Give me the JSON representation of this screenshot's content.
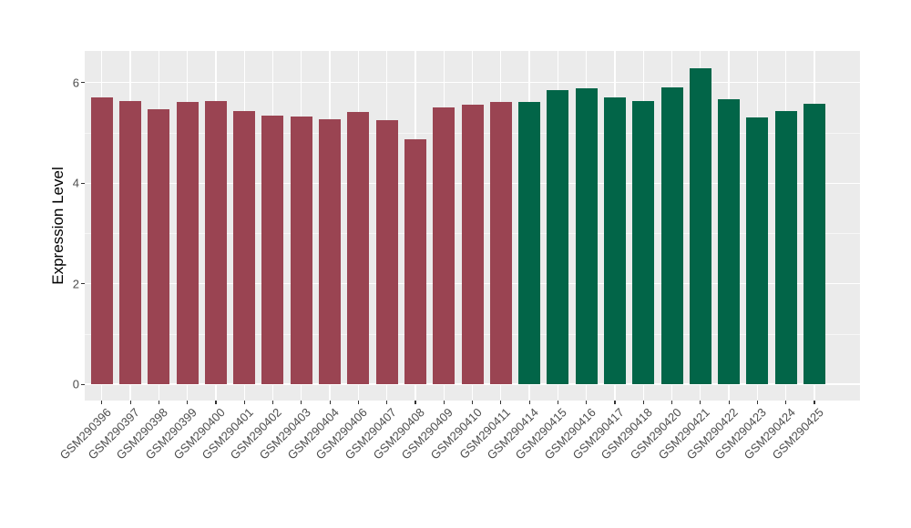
{
  "chart_data": {
    "type": "bar",
    "title": "",
    "xlabel": "",
    "ylabel": "Expression Level",
    "yticks": [
      0,
      2,
      4,
      6
    ],
    "ylim": [
      -0.33,
      6.6
    ],
    "grid": "white major gridlines at y ticks and bar centers, faint white minor gridlines at odd values, grey panel",
    "legend_position": "none",
    "panel_background": "#EBEBEB",
    "figure_background": "#FFFFFF",
    "axis_text_color": "#4D4D4D",
    "tick_mark_color": "#333333",
    "group_colors": {
      "group1": "#9A4452",
      "group2": "#026548"
    },
    "bars": [
      {
        "label": "GSM290396",
        "value": 5.7,
        "group": "group1"
      },
      {
        "label": "GSM290397",
        "value": 5.63,
        "group": "group1"
      },
      {
        "label": "GSM290398",
        "value": 5.47,
        "group": "group1"
      },
      {
        "label": "GSM290399",
        "value": 5.62,
        "group": "group1"
      },
      {
        "label": "GSM290400",
        "value": 5.64,
        "group": "group1"
      },
      {
        "label": "GSM290401",
        "value": 5.44,
        "group": "group1"
      },
      {
        "label": "GSM290402",
        "value": 5.34,
        "group": "group1"
      },
      {
        "label": "GSM290403",
        "value": 5.33,
        "group": "group1"
      },
      {
        "label": "GSM290404",
        "value": 5.28,
        "group": "group1"
      },
      {
        "label": "GSM290406",
        "value": 5.41,
        "group": "group1"
      },
      {
        "label": "GSM290407",
        "value": 5.26,
        "group": "group1"
      },
      {
        "label": "GSM290408",
        "value": 4.87,
        "group": "group1"
      },
      {
        "label": "GSM290409",
        "value": 5.5,
        "group": "group1"
      },
      {
        "label": "GSM290410",
        "value": 5.57,
        "group": "group1"
      },
      {
        "label": "GSM290411",
        "value": 5.61,
        "group": "group1"
      },
      {
        "label": "GSM290414",
        "value": 5.61,
        "group": "group2"
      },
      {
        "label": "GSM290415",
        "value": 5.85,
        "group": "group2"
      },
      {
        "label": "GSM290416",
        "value": 5.88,
        "group": "group2"
      },
      {
        "label": "GSM290417",
        "value": 5.71,
        "group": "group2"
      },
      {
        "label": "GSM290418",
        "value": 5.64,
        "group": "group2"
      },
      {
        "label": "GSM290420",
        "value": 5.91,
        "group": "group2"
      },
      {
        "label": "GSM290421",
        "value": 6.29,
        "group": "group2"
      },
      {
        "label": "GSM290422",
        "value": 5.67,
        "group": "group2"
      },
      {
        "label": "GSM290423",
        "value": 5.31,
        "group": "group2"
      },
      {
        "label": "GSM290424",
        "value": 5.44,
        "group": "group2"
      },
      {
        "label": "GSM290425",
        "value": 5.58,
        "group": "group2"
      }
    ]
  }
}
